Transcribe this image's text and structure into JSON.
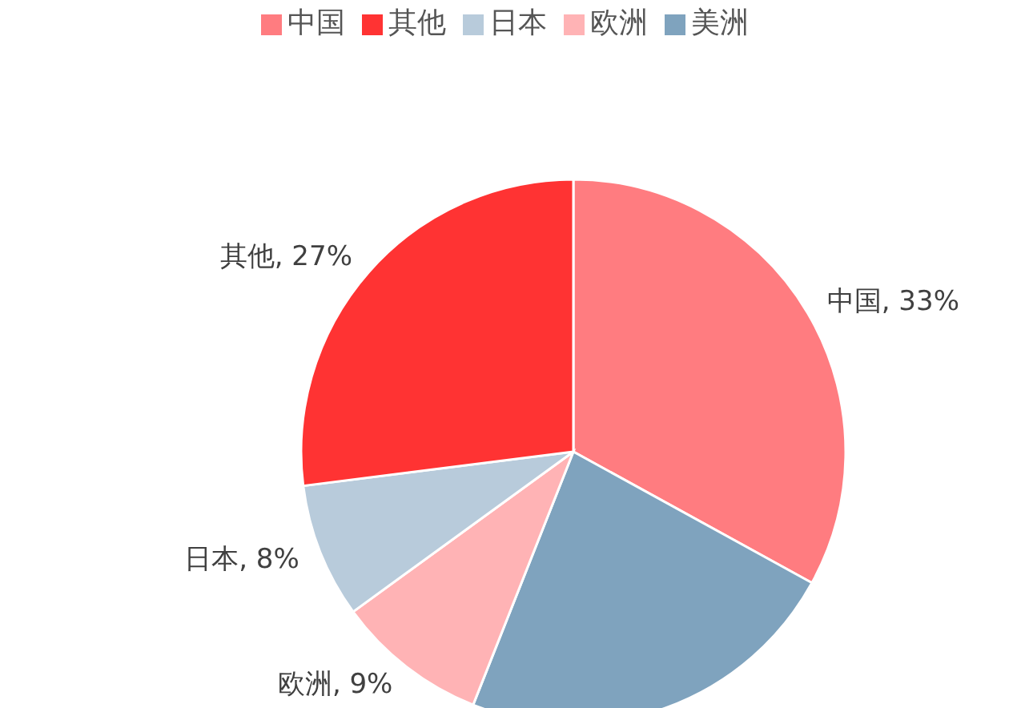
{
  "chart_data": {
    "type": "pie",
    "categories": [
      "中国",
      "美洲",
      "欧洲",
      "日本",
      "其他"
    ],
    "values": [
      33,
      23,
      9,
      8,
      27
    ],
    "colors": [
      "#ff7c80",
      "#7fa3be",
      "#ffb3b5",
      "#b8cbdb",
      "#ff3333"
    ],
    "value_labels": [
      "中国, 33%",
      null,
      "欧洲, 9%",
      "日本, 8%",
      "其他, 27%"
    ],
    "legend": "top"
  }
}
